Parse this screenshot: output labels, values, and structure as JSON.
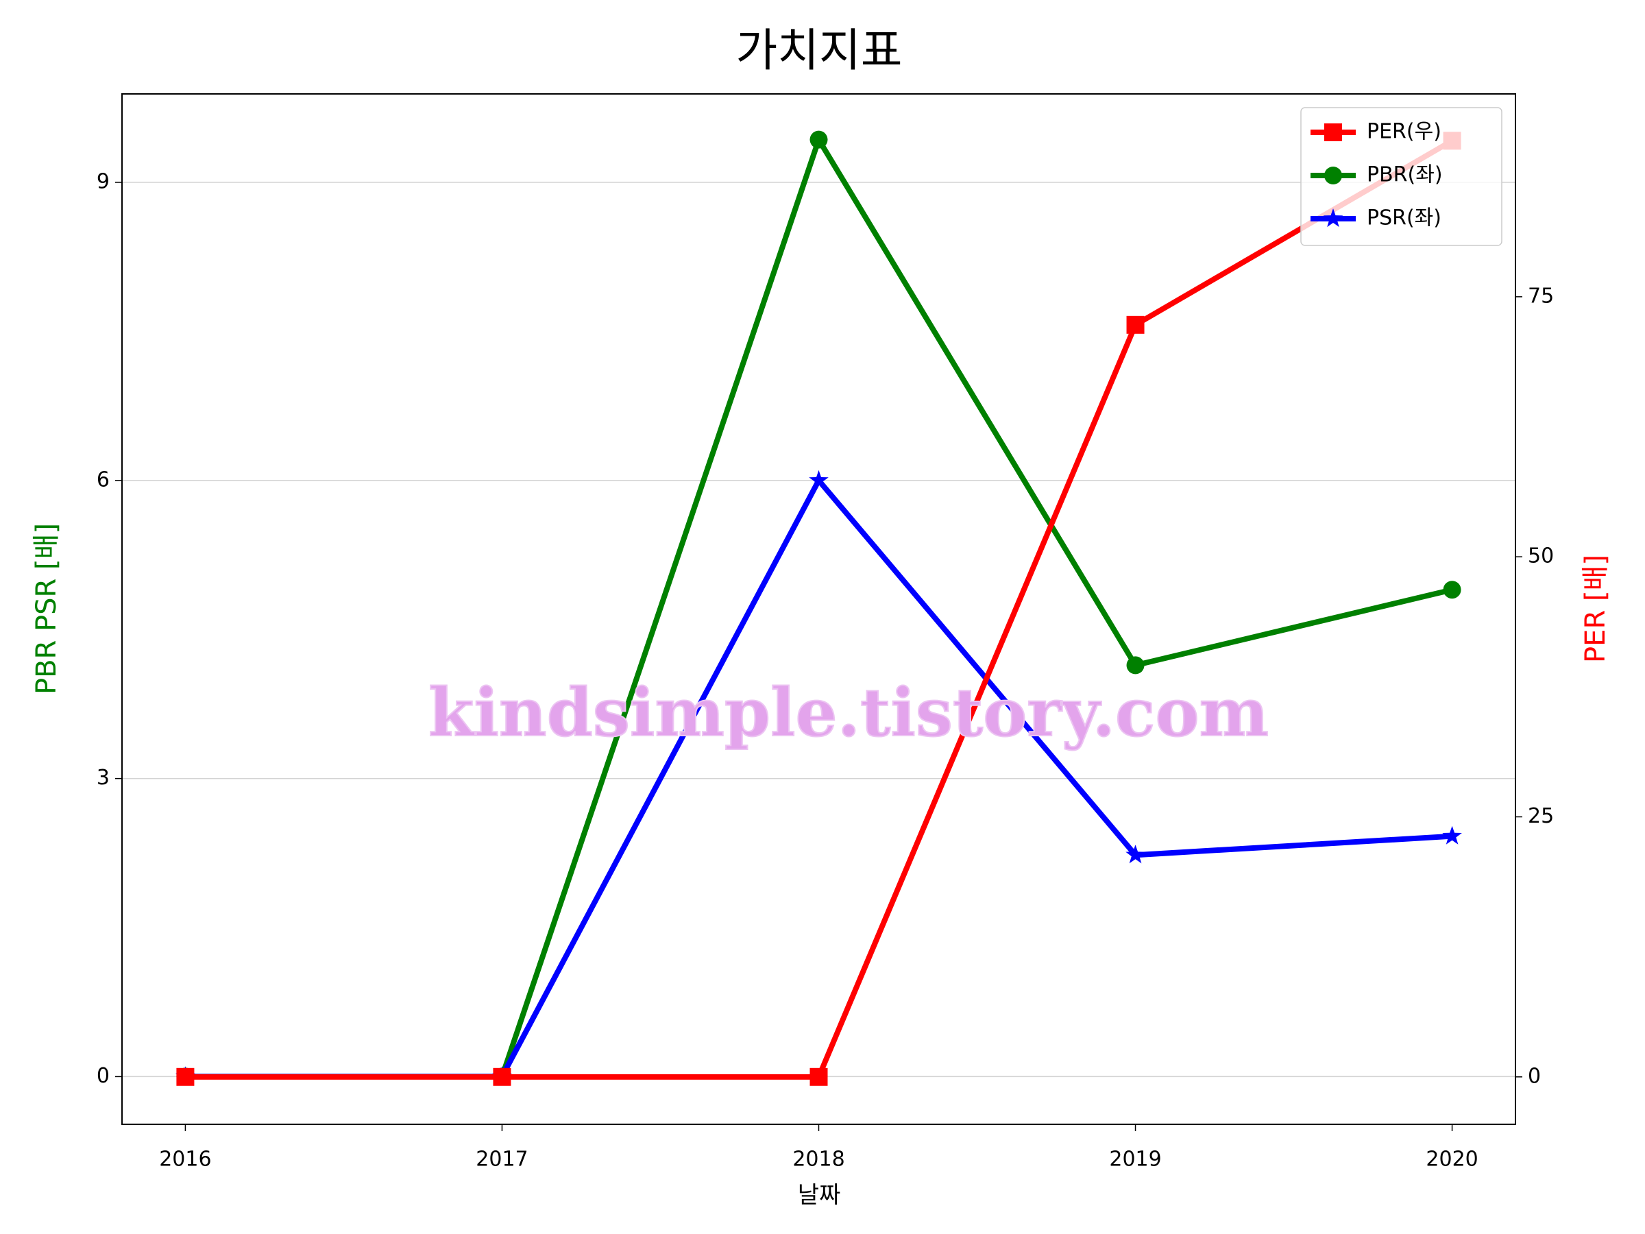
{
  "chart_data": {
    "type": "line",
    "title": "가치지표",
    "xlabel": "날짜",
    "ylabel": "PBR PSR [배]",
    "y2label": "PER [배]",
    "annotation": "kindsimple.tistory.com",
    "x": [
      2016,
      2017,
      2018,
      2019,
      2020
    ],
    "xlim": [
      2015.8,
      2020.2
    ],
    "xticks": [
      2016,
      2017,
      2018,
      2019,
      2020
    ],
    "ylim": [
      -0.48,
      9.89
    ],
    "yticks": [
      0,
      3,
      6,
      9
    ],
    "y2lim": [
      -4.56,
      94.5
    ],
    "y2ticks": [
      0,
      25,
      50,
      75
    ],
    "grid": true,
    "legend": "upper right",
    "series": [
      {
        "name": "PER(우)",
        "color": "red",
        "marker": "square",
        "axis": "y2",
        "values": [
          0,
          0,
          0,
          72.3,
          90.0
        ]
      },
      {
        "name": "PBR(좌)",
        "color": "green",
        "marker": "circle",
        "values": [
          0,
          0,
          9.43,
          4.14,
          4.9
        ]
      },
      {
        "name": "PSR(좌)",
        "color": "blue",
        "marker": "star",
        "values": [
          0,
          0,
          6.0,
          2.23,
          2.42
        ]
      }
    ]
  }
}
